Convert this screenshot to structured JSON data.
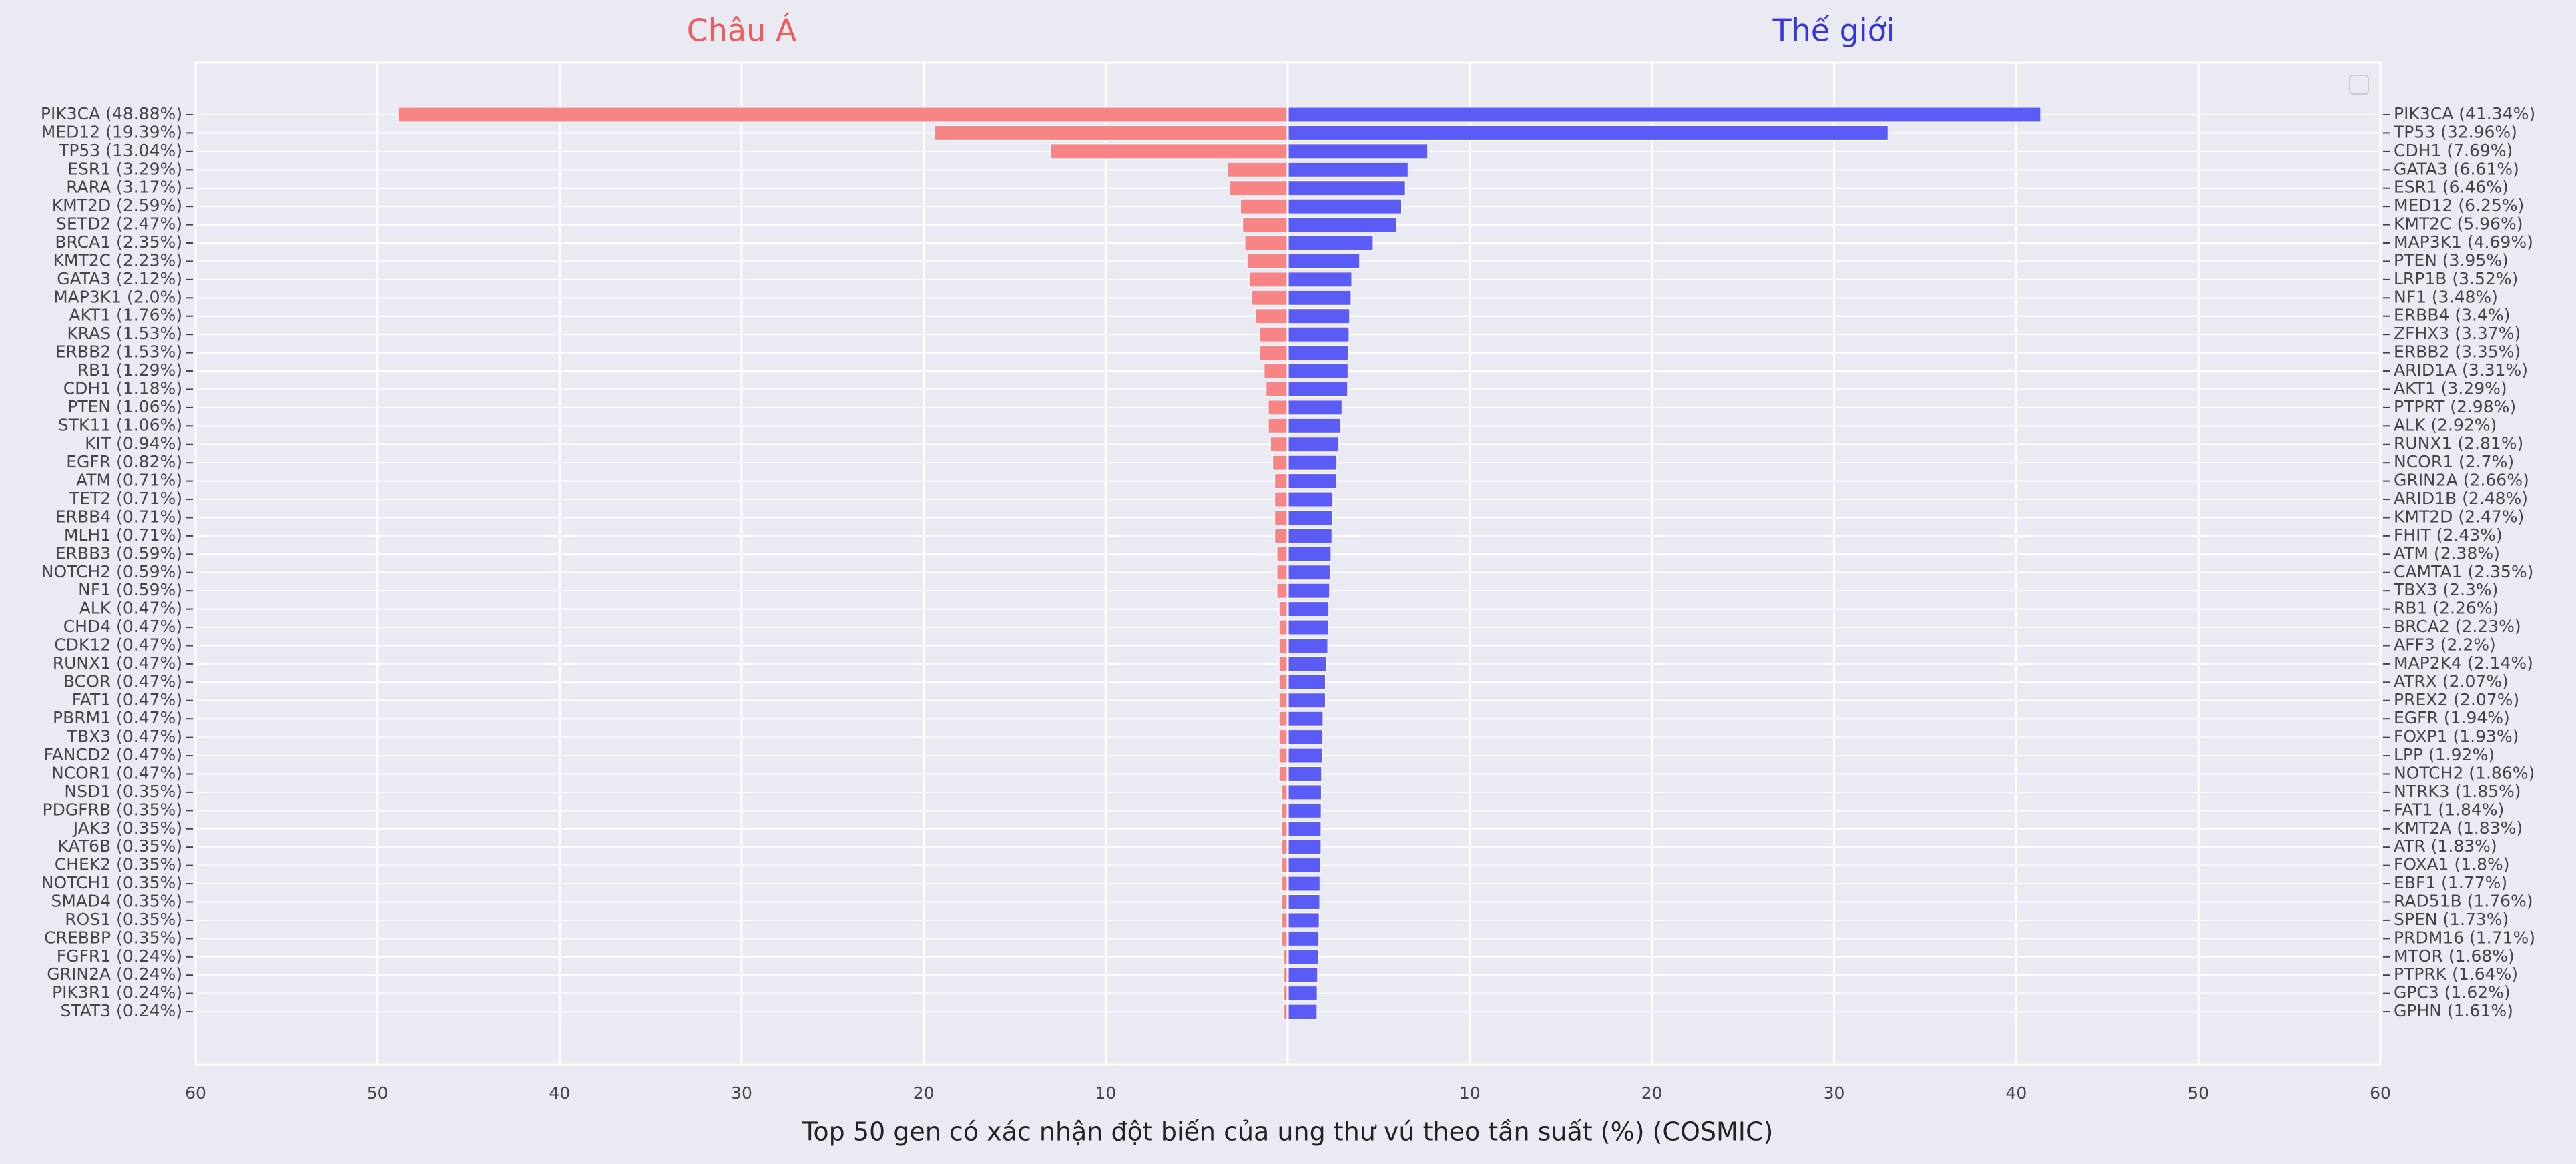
{
  "chart_data": [
    {
      "type": "bar",
      "orientation": "horizontal",
      "title": "Châu Á",
      "title_color": "#f05a5a",
      "color": "#f88585",
      "categories": [
        "PIK3CA (48.88%)",
        "MED12 (19.39%)",
        "TP53 (13.04%)",
        "ESR1 (3.29%)",
        "RARA (3.17%)",
        "KMT2D (2.59%)",
        "SETD2 (2.47%)",
        "BRCA1 (2.35%)",
        "KMT2C (2.23%)",
        "GATA3 (2.12%)",
        "MAP3K1 (2.0%)",
        "AKT1 (1.76%)",
        "KRAS (1.53%)",
        "ERBB2 (1.53%)",
        "RB1 (1.29%)",
        "CDH1 (1.18%)",
        "PTEN (1.06%)",
        "STK11 (1.06%)",
        "KIT (0.94%)",
        "EGFR (0.82%)",
        "ATM (0.71%)",
        "TET2 (0.71%)",
        "ERBB4 (0.71%)",
        "MLH1 (0.71%)",
        "ERBB3 (0.59%)",
        "NOTCH2 (0.59%)",
        "NF1 (0.59%)",
        "ALK (0.47%)",
        "CHD4 (0.47%)",
        "CDK12 (0.47%)",
        "RUNX1 (0.47%)",
        "BCOR (0.47%)",
        "FAT1 (0.47%)",
        "PBRM1 (0.47%)",
        "TBX3 (0.47%)",
        "FANCD2 (0.47%)",
        "NCOR1 (0.47%)",
        "NSD1 (0.35%)",
        "PDGFRB (0.35%)",
        "JAK3 (0.35%)",
        "KAT6B (0.35%)",
        "CHEK2 (0.35%)",
        "NOTCH1 (0.35%)",
        "SMAD4 (0.35%)",
        "ROS1 (0.35%)",
        "CREBBP (0.35%)",
        "FGFR1 (0.24%)",
        "GRIN2A (0.24%)",
        "PIK3R1 (0.24%)",
        "STAT3 (0.24%)"
      ],
      "values": [
        48.88,
        19.39,
        13.04,
        3.29,
        3.17,
        2.59,
        2.47,
        2.35,
        2.23,
        2.12,
        2.0,
        1.76,
        1.53,
        1.53,
        1.29,
        1.18,
        1.06,
        1.06,
        0.94,
        0.82,
        0.71,
        0.71,
        0.71,
        0.71,
        0.59,
        0.59,
        0.59,
        0.47,
        0.47,
        0.47,
        0.47,
        0.47,
        0.47,
        0.47,
        0.47,
        0.47,
        0.47,
        0.35,
        0.35,
        0.35,
        0.35,
        0.35,
        0.35,
        0.35,
        0.35,
        0.35,
        0.24,
        0.24,
        0.24,
        0.24
      ],
      "xlim": [
        60,
        0
      ],
      "xticks": [
        60,
        50,
        40,
        30,
        20,
        10
      ],
      "grid": true
    },
    {
      "type": "bar",
      "orientation": "horizontal",
      "title": "Thế giới",
      "title_color": "#3535e0",
      "color": "#5b5bf5",
      "categories": [
        "PIK3CA (41.34%)",
        "TP53 (32.96%)",
        "CDH1 (7.69%)",
        "GATA3 (6.61%)",
        "ESR1 (6.46%)",
        "MED12 (6.25%)",
        "KMT2C (5.96%)",
        "MAP3K1 (4.69%)",
        "PTEN (3.95%)",
        "LRP1B (3.52%)",
        "NF1 (3.48%)",
        "ERBB4 (3.4%)",
        "ZFHX3 (3.37%)",
        "ERBB2 (3.35%)",
        "ARID1A (3.31%)",
        "AKT1 (3.29%)",
        "PTPRT (2.98%)",
        "ALK (2.92%)",
        "RUNX1 (2.81%)",
        "NCOR1 (2.7%)",
        "GRIN2A (2.66%)",
        "ARID1B (2.48%)",
        "KMT2D (2.47%)",
        "FHIT (2.43%)",
        "ATM (2.38%)",
        "CAMTA1 (2.35%)",
        "TBX3 (2.3%)",
        "RB1 (2.26%)",
        "BRCA2 (2.23%)",
        "AFF3 (2.2%)",
        "MAP2K4 (2.14%)",
        "ATRX (2.07%)",
        "PREX2 (2.07%)",
        "EGFR (1.94%)",
        "FOXP1 (1.93%)",
        "LPP (1.92%)",
        "NOTCH2 (1.86%)",
        "NTRK3 (1.85%)",
        "FAT1 (1.84%)",
        "KMT2A (1.83%)",
        "ATR (1.83%)",
        "FOXA1 (1.8%)",
        "EBF1 (1.77%)",
        "RAD51B (1.76%)",
        "SPEN (1.73%)",
        "PRDM16 (1.71%)",
        "MTOR (1.68%)",
        "PTPRK (1.64%)",
        "GPC3 (1.62%)",
        "GPHN (1.61%)"
      ],
      "values": [
        41.34,
        32.96,
        7.69,
        6.61,
        6.46,
        6.25,
        5.96,
        4.69,
        3.95,
        3.52,
        3.48,
        3.4,
        3.37,
        3.35,
        3.31,
        3.29,
        2.98,
        2.92,
        2.81,
        2.7,
        2.66,
        2.48,
        2.47,
        2.43,
        2.38,
        2.35,
        2.3,
        2.26,
        2.23,
        2.2,
        2.14,
        2.07,
        2.07,
        1.94,
        1.93,
        1.92,
        1.86,
        1.85,
        1.84,
        1.83,
        1.83,
        1.8,
        1.77,
        1.76,
        1.73,
        1.71,
        1.68,
        1.64,
        1.62,
        1.61
      ],
      "xlim": [
        0,
        60
      ],
      "xticks": [
        10,
        20,
        30,
        40,
        50,
        60
      ],
      "grid": true
    }
  ],
  "xlabel": "Top 50 gen có xác nhận đột biến của ung thư vú theo tần suất (%) (COSMIC)"
}
